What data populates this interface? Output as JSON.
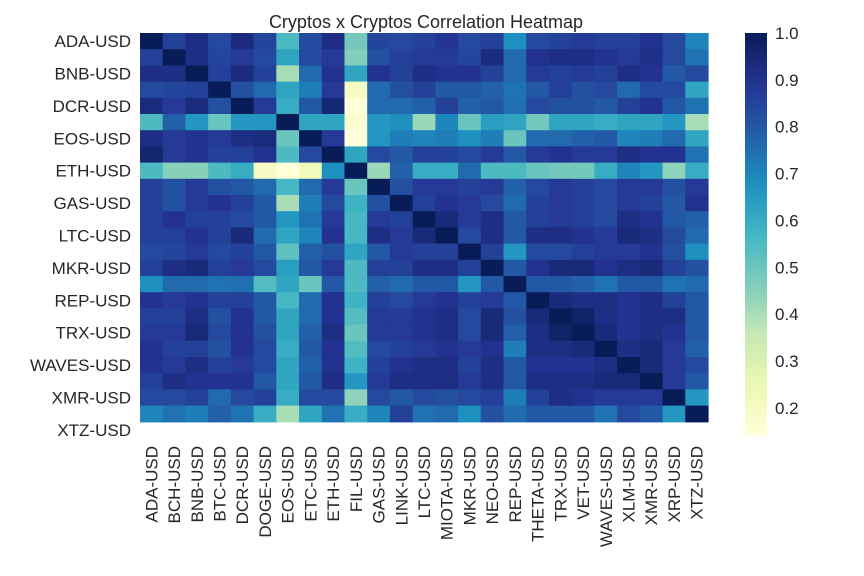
{
  "chart_data": {
    "type": "heatmap",
    "title": "Cryptos x Cryptos Correlation Heatmap",
    "xlabel": "",
    "ylabel": "",
    "colormap": "YlGnBu",
    "vmin": 0.14,
    "vmax": 1.0,
    "x_labels": [
      "ADA-USD",
      "BCH-USD",
      "BNB-USD",
      "BTC-USD",
      "DCR-USD",
      "DOGE-USD",
      "EOS-USD",
      "ETC-USD",
      "ETH-USD",
      "FIL-USD",
      "GAS-USD",
      "LINK-USD",
      "LTC-USD",
      "MIOTA-USD",
      "MKR-USD",
      "NEO-USD",
      "REP-USD",
      "THETA-USD",
      "TRX-USD",
      "VET-USD",
      "WAVES-USD",
      "XLM-USD",
      "XMR-USD",
      "XRP-USD",
      "XTZ-USD"
    ],
    "y_labels": [
      "ADA-USD",
      "BCH-USD",
      "BNB-USD",
      "BTC-USD",
      "DCR-USD",
      "DOGE-USD",
      "EOS-USD",
      "ETC-USD",
      "ETH-USD",
      "FIL-USD",
      "GAS-USD",
      "LINK-USD",
      "LTC-USD",
      "MIOTA-USD",
      "MKR-USD",
      "NEO-USD",
      "REP-USD",
      "THETA-USD",
      "TRX-USD",
      "VET-USD",
      "WAVES-USD",
      "XLM-USD",
      "XMR-USD",
      "XRP-USD",
      "XTZ-USD"
    ],
    "y_tick_labels_shown": [
      "ADA-USD",
      "BNB-USD",
      "DCR-USD",
      "EOS-USD",
      "ETH-USD",
      "GAS-USD",
      "LTC-USD",
      "MKR-USD",
      "REP-USD",
      "TRX-USD",
      "WAVES-USD",
      "XMR-USD",
      "XTZ-USD"
    ],
    "values": [
      [
        1.0,
        0.86,
        0.92,
        0.84,
        0.93,
        0.85,
        0.55,
        0.83,
        0.92,
        0.48,
        0.85,
        0.84,
        0.86,
        0.89,
        0.84,
        0.86,
        0.68,
        0.84,
        0.86,
        0.88,
        0.86,
        0.86,
        0.9,
        0.84,
        0.7
      ],
      [
        0.86,
        1.0,
        0.92,
        0.85,
        0.88,
        0.84,
        0.62,
        0.84,
        0.88,
        0.46,
        0.82,
        0.86,
        0.88,
        0.88,
        0.85,
        0.93,
        0.76,
        0.9,
        0.92,
        0.92,
        0.9,
        0.88,
        0.91,
        0.84,
        0.74
      ],
      [
        0.92,
        0.92,
        1.0,
        0.86,
        0.93,
        0.86,
        0.4,
        0.76,
        0.9,
        0.62,
        0.9,
        0.86,
        0.92,
        0.9,
        0.9,
        0.86,
        0.76,
        0.88,
        0.86,
        0.88,
        0.86,
        0.92,
        0.9,
        0.8,
        0.84
      ],
      [
        0.84,
        0.85,
        0.86,
        1.0,
        0.82,
        0.76,
        0.62,
        0.72,
        0.88,
        0.2,
        0.76,
        0.82,
        0.86,
        0.8,
        0.8,
        0.78,
        0.74,
        0.8,
        0.86,
        0.82,
        0.84,
        0.76,
        0.84,
        0.84,
        0.62
      ],
      [
        0.93,
        0.88,
        0.93,
        0.82,
        1.0,
        0.88,
        0.6,
        0.8,
        0.95,
        0.14,
        0.76,
        0.76,
        0.78,
        0.86,
        0.78,
        0.8,
        0.75,
        0.84,
        0.82,
        0.82,
        0.8,
        0.86,
        0.9,
        0.8,
        0.74
      ],
      [
        0.55,
        0.78,
        0.66,
        0.5,
        0.66,
        0.66,
        1.0,
        0.62,
        0.62,
        0.16,
        0.66,
        0.68,
        0.42,
        0.7,
        0.5,
        0.64,
        0.62,
        0.48,
        0.62,
        0.62,
        0.6,
        0.62,
        0.62,
        0.66,
        0.4
      ],
      [
        0.92,
        0.88,
        0.9,
        0.88,
        0.92,
        0.93,
        0.5,
        1.0,
        0.88,
        0.13,
        0.66,
        0.72,
        0.7,
        0.72,
        0.68,
        0.72,
        0.5,
        0.76,
        0.76,
        0.78,
        0.8,
        0.7,
        0.72,
        0.76,
        0.62
      ],
      [
        0.96,
        0.88,
        0.9,
        0.86,
        0.86,
        0.9,
        0.55,
        0.84,
        1.0,
        0.62,
        0.84,
        0.8,
        0.86,
        0.86,
        0.84,
        0.88,
        0.8,
        0.88,
        0.9,
        0.88,
        0.88,
        0.92,
        0.9,
        0.9,
        0.74
      ],
      [
        0.55,
        0.45,
        0.45,
        0.55,
        0.6,
        0.2,
        0.14,
        0.22,
        0.68,
        1.0,
        0.42,
        0.78,
        0.6,
        0.6,
        0.76,
        0.55,
        0.55,
        0.5,
        0.48,
        0.48,
        0.6,
        0.7,
        0.66,
        0.44,
        0.6
      ],
      [
        0.86,
        0.82,
        0.88,
        0.82,
        0.8,
        0.76,
        0.56,
        0.76,
        0.88,
        0.5,
        1.0,
        0.82,
        0.88,
        0.88,
        0.86,
        0.88,
        0.78,
        0.84,
        0.88,
        0.86,
        0.84,
        0.88,
        0.88,
        0.82,
        0.88
      ],
      [
        0.86,
        0.82,
        0.88,
        0.9,
        0.86,
        0.8,
        0.4,
        0.72,
        0.84,
        0.58,
        0.82,
        1.0,
        0.86,
        0.9,
        0.88,
        0.84,
        0.76,
        0.86,
        0.88,
        0.86,
        0.84,
        0.88,
        0.86,
        0.8,
        0.9
      ],
      [
        0.86,
        0.9,
        0.86,
        0.86,
        0.84,
        0.8,
        0.66,
        0.74,
        0.88,
        0.56,
        0.88,
        0.86,
        1.0,
        0.94,
        0.88,
        0.92,
        0.8,
        0.86,
        0.88,
        0.86,
        0.84,
        0.92,
        0.9,
        0.8,
        0.78
      ],
      [
        0.86,
        0.86,
        0.9,
        0.86,
        0.94,
        0.76,
        0.62,
        0.7,
        0.9,
        0.56,
        0.92,
        0.88,
        0.94,
        1.0,
        0.84,
        0.92,
        0.8,
        0.92,
        0.92,
        0.9,
        0.88,
        0.94,
        0.92,
        0.84,
        0.76
      ],
      [
        0.84,
        0.85,
        0.88,
        0.84,
        0.86,
        0.8,
        0.52,
        0.78,
        0.82,
        0.62,
        0.8,
        0.88,
        0.86,
        0.86,
        1.0,
        0.86,
        0.66,
        0.84,
        0.84,
        0.86,
        0.88,
        0.88,
        0.9,
        0.82,
        0.68
      ],
      [
        0.86,
        0.92,
        0.94,
        0.86,
        0.88,
        0.84,
        0.64,
        0.8,
        0.88,
        0.55,
        0.86,
        0.86,
        0.92,
        0.92,
        0.86,
        1.0,
        0.8,
        0.9,
        0.94,
        0.94,
        0.9,
        0.92,
        0.94,
        0.86,
        0.82
      ],
      [
        0.68,
        0.76,
        0.76,
        0.74,
        0.75,
        0.54,
        0.62,
        0.5,
        0.8,
        0.55,
        0.78,
        0.76,
        0.8,
        0.8,
        0.66,
        0.8,
        1.0,
        0.8,
        0.8,
        0.78,
        0.74,
        0.8,
        0.8,
        0.74,
        0.76
      ],
      [
        0.9,
        0.88,
        0.9,
        0.86,
        0.86,
        0.8,
        0.56,
        0.76,
        0.9,
        0.58,
        0.86,
        0.84,
        0.88,
        0.9,
        0.86,
        0.88,
        0.8,
        1.0,
        0.94,
        0.92,
        0.92,
        0.9,
        0.92,
        0.86,
        0.8
      ],
      [
        0.86,
        0.86,
        0.92,
        0.82,
        0.9,
        0.8,
        0.62,
        0.76,
        0.9,
        0.54,
        0.88,
        0.88,
        0.9,
        0.92,
        0.84,
        0.94,
        0.82,
        0.94,
        1.0,
        0.97,
        0.92,
        0.9,
        0.92,
        0.92,
        0.8
      ],
      [
        0.88,
        0.88,
        0.94,
        0.84,
        0.9,
        0.82,
        0.62,
        0.78,
        0.92,
        0.5,
        0.88,
        0.88,
        0.9,
        0.92,
        0.84,
        0.94,
        0.78,
        0.92,
        0.97,
        1.0,
        0.94,
        0.9,
        0.92,
        0.9,
        0.8
      ],
      [
        0.9,
        0.86,
        0.86,
        0.82,
        0.9,
        0.84,
        0.6,
        0.8,
        0.9,
        0.54,
        0.84,
        0.86,
        0.88,
        0.9,
        0.88,
        0.9,
        0.72,
        0.92,
        0.92,
        0.94,
        1.0,
        0.92,
        0.94,
        0.88,
        0.78
      ],
      [
        0.9,
        0.88,
        0.92,
        0.86,
        0.88,
        0.84,
        0.62,
        0.78,
        0.9,
        0.58,
        0.86,
        0.9,
        0.92,
        0.92,
        0.86,
        0.92,
        0.8,
        0.9,
        0.9,
        0.9,
        0.92,
        1.0,
        0.94,
        0.88,
        0.84
      ],
      [
        0.86,
        0.92,
        0.9,
        0.9,
        0.9,
        0.8,
        0.62,
        0.8,
        0.92,
        0.66,
        0.88,
        0.92,
        0.92,
        0.92,
        0.88,
        0.92,
        0.8,
        0.92,
        0.92,
        0.92,
        0.94,
        0.94,
        1.0,
        0.88,
        0.8
      ],
      [
        0.84,
        0.84,
        0.86,
        0.76,
        0.84,
        0.86,
        0.6,
        0.84,
        0.84,
        0.44,
        0.84,
        0.8,
        0.84,
        0.82,
        0.84,
        0.86,
        0.72,
        0.86,
        0.92,
        0.9,
        0.88,
        0.88,
        0.88,
        1.0,
        0.66
      ],
      [
        0.7,
        0.74,
        0.72,
        0.78,
        0.74,
        0.6,
        0.4,
        0.62,
        0.74,
        0.6,
        0.7,
        0.86,
        0.74,
        0.76,
        0.68,
        0.82,
        0.76,
        0.8,
        0.8,
        0.8,
        0.74,
        0.84,
        0.8,
        0.66,
        1.0
      ]
    ],
    "colorbar_ticks": [
      0.2,
      0.3,
      0.4,
      0.5,
      0.6,
      0.7,
      0.8,
      0.9,
      1.0
    ]
  }
}
